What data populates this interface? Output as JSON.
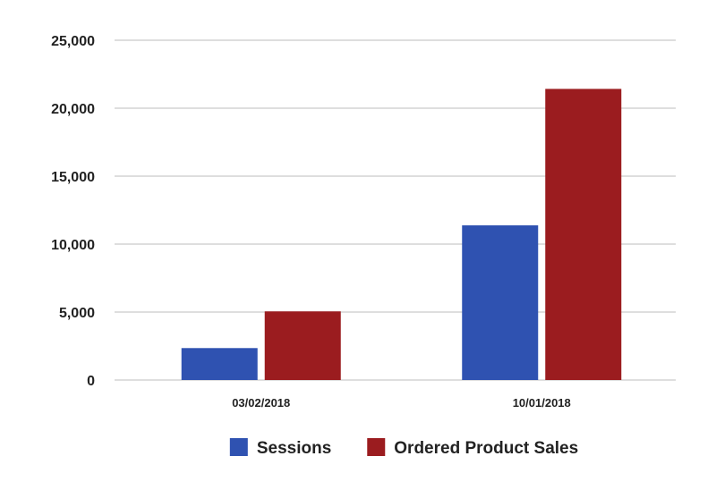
{
  "chart_data": {
    "type": "bar",
    "title": "",
    "xlabel": "",
    "ylabel": "",
    "categories": [
      "03/02/2018",
      "10/01/2018"
    ],
    "series": [
      {
        "name": "Sessions",
        "values": [
          2350,
          11380
        ],
        "color": "#2f52b1"
      },
      {
        "name": "Ordered Product Sales",
        "values": [
          5050,
          21420
        ],
        "color": "#9b1c1f"
      }
    ],
    "ylim": [
      0,
      25000
    ],
    "yticks": [
      {
        "value": 0,
        "label": "0"
      },
      {
        "value": 5000,
        "label": "5,000"
      },
      {
        "value": 10000,
        "label": "10,000"
      },
      {
        "value": 15000,
        "label": "15,000"
      },
      {
        "value": 20000,
        "label": "20,000"
      },
      {
        "value": 25000,
        "label": "25,000"
      }
    ],
    "grid": true,
    "gridColor": "#d4d4d4",
    "legend": "bottom-center"
  }
}
